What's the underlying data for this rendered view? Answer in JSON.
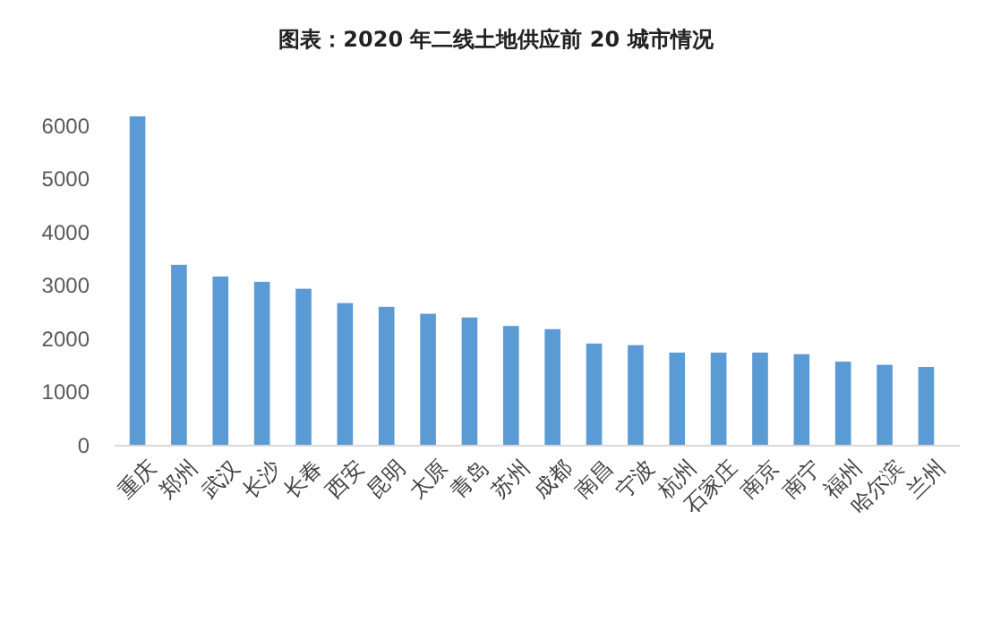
{
  "chart_data": {
    "type": "bar",
    "title": "图表：2020 年二线土地供应前 20 城市情况",
    "categories": [
      "重庆",
      "郑州",
      "武汉",
      "长沙",
      "长春",
      "西安",
      "昆明",
      "太原",
      "青岛",
      "苏州",
      "成都",
      "南昌",
      "宁波",
      "杭州",
      "石家庄",
      "南京",
      "南宁",
      "福州",
      "哈尔滨",
      "兰州"
    ],
    "values": [
      6190,
      3400,
      3180,
      3080,
      2950,
      2680,
      2610,
      2480,
      2410,
      2250,
      2190,
      1920,
      1890,
      1750,
      1750,
      1750,
      1720,
      1580,
      1520,
      1480
    ],
    "color": "#5b9bd5",
    "ylim": [
      0,
      6190
    ],
    "yticks": [
      0,
      1000,
      2000,
      3000,
      4000,
      5000,
      6000
    ],
    "grid": false
  }
}
